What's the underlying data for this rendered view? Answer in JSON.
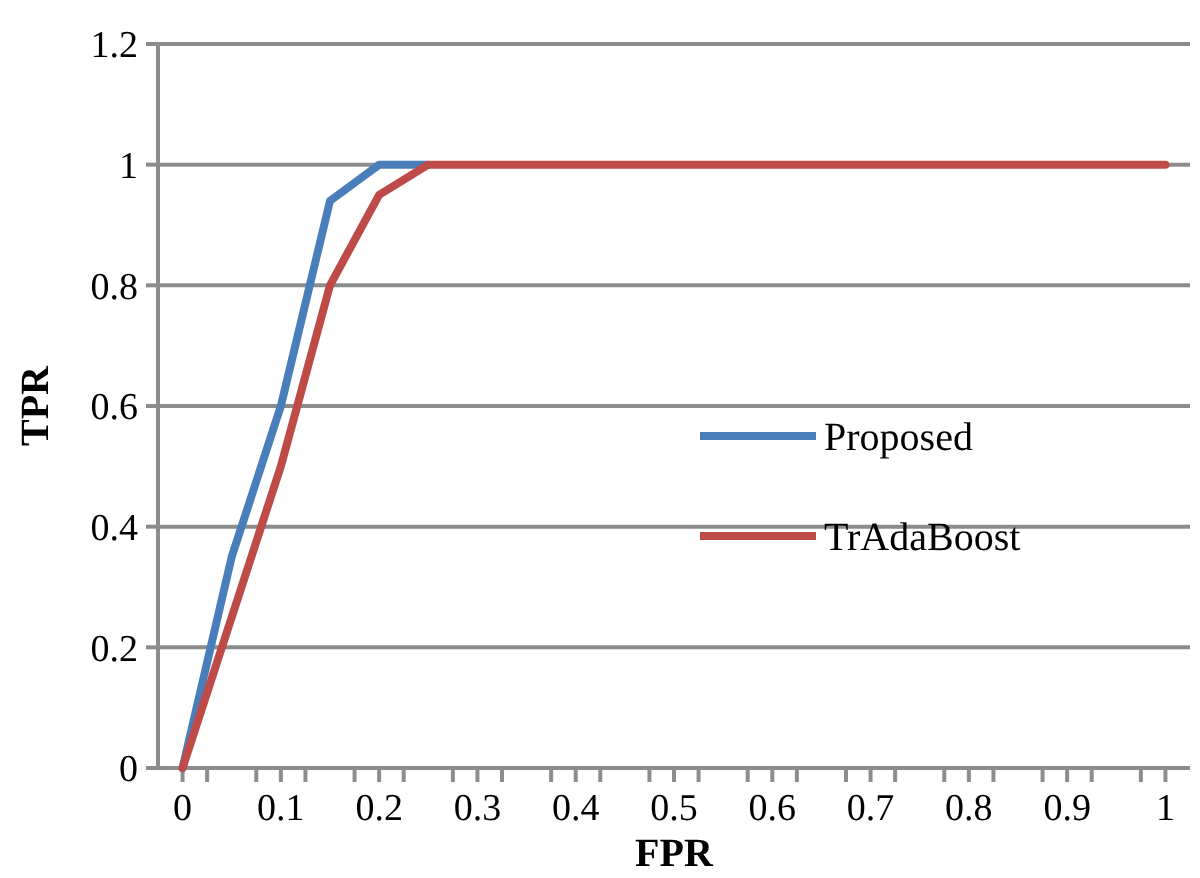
{
  "chart_data": {
    "type": "line",
    "xlabel": "FPR",
    "ylabel": "TPR",
    "x": [
      0,
      0.05,
      0.1,
      0.15,
      0.2,
      0.25,
      0.3,
      0.35,
      0.4,
      0.45,
      0.5,
      0.55,
      0.6,
      0.65,
      0.7,
      0.75,
      0.8,
      0.85,
      0.9,
      0.95,
      1
    ],
    "series": [
      {
        "name": "Proposed",
        "color": "#4a7ebb",
        "values": [
          0,
          0.35,
          0.6,
          0.94,
          1,
          1,
          null,
          null,
          null,
          null,
          null,
          null,
          null,
          null,
          null,
          null,
          null,
          null,
          null,
          null,
          null
        ]
      },
      {
        "name": "TrAdaBoost",
        "color": "#be4b48",
        "values": [
          0,
          0.25,
          0.5,
          0.8,
          0.95,
          1,
          1,
          1,
          1,
          1,
          1,
          1,
          1,
          1,
          1,
          1,
          1,
          1,
          1,
          1,
          1
        ]
      }
    ],
    "xlim": [
      -0.025,
      1.025
    ],
    "xticks": [
      0,
      {
        "value": 0.025,
        "label": null
      },
      {
        "value": 0.075,
        "label": null
      },
      0.1,
      {
        "value": 0.125,
        "label": null
      },
      {
        "value": 0.175,
        "label": null
      },
      0.2,
      {
        "value": 0.225,
        "label": null
      },
      {
        "value": 0.275,
        "label": null
      },
      0.3,
      {
        "value": 0.325,
        "label": null
      },
      {
        "value": 0.375,
        "label": null
      },
      0.4,
      {
        "value": 0.425,
        "label": null
      },
      {
        "value": 0.475,
        "label": null
      },
      0.5,
      {
        "value": 0.525,
        "label": null
      },
      {
        "value": 0.575,
        "label": null
      },
      0.6,
      {
        "value": 0.625,
        "label": null
      },
      {
        "value": 0.675,
        "label": null
      },
      0.7,
      {
        "value": 0.725,
        "label": null
      },
      {
        "value": 0.775,
        "label": null
      },
      0.8,
      {
        "value": 0.825,
        "label": null
      },
      {
        "value": 0.875,
        "label": null
      },
      0.9,
      {
        "value": 0.925,
        "label": null
      },
      {
        "value": 0.975,
        "label": null
      },
      1
    ],
    "ylim": [
      0,
      1.2
    ],
    "yticks": [
      0,
      0.2,
      0.4,
      0.6,
      0.8,
      1,
      1.2
    ],
    "grid": "y",
    "legend": "right",
    "marker": "none",
    "line_style": "solid"
  }
}
